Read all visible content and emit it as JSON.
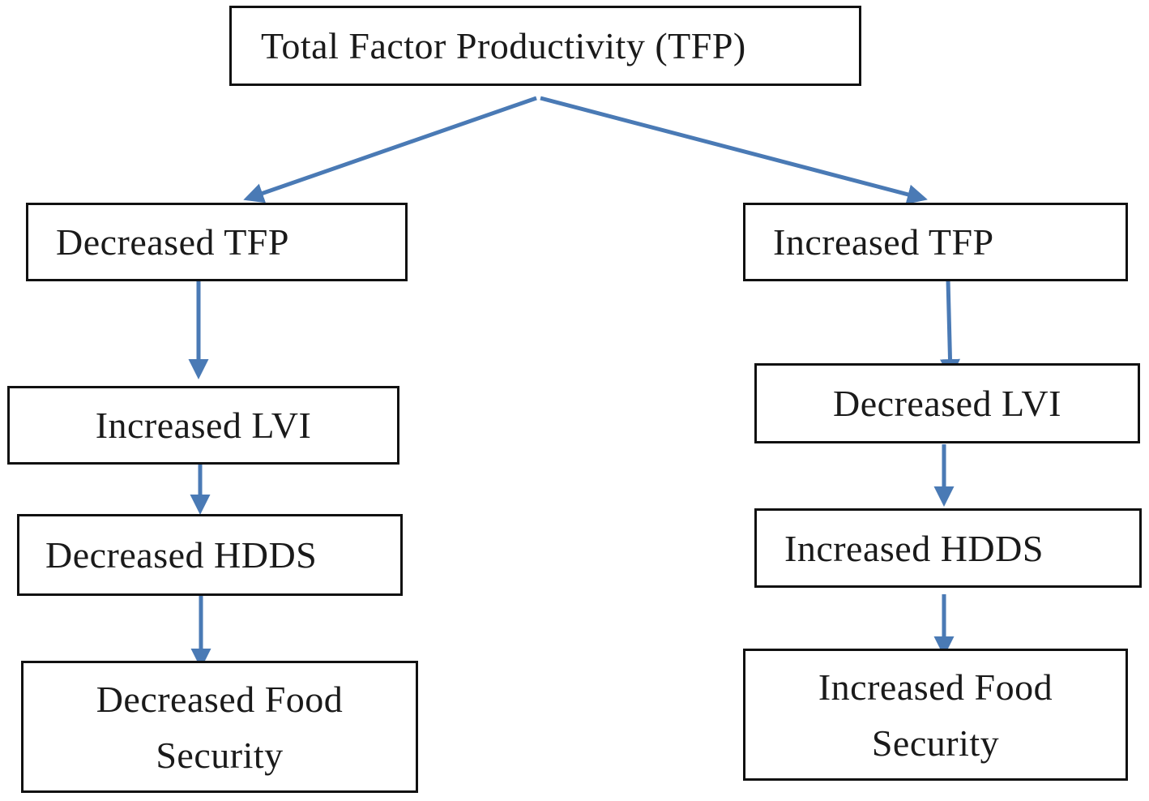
{
  "accent_color": "#4a7ab5",
  "root": {
    "label": "Total Factor Productivity (TFP)"
  },
  "left_branch": {
    "tfp": "Decreased TFP",
    "lvi": "Increased LVI",
    "hdds": "Decreased HDDS",
    "food_security": "Decreased Food Security"
  },
  "right_branch": {
    "tfp": "Increased TFP",
    "lvi": "Decreased LVI",
    "hdds": "Increased HDDS",
    "food_security": "Increased Food Security"
  }
}
